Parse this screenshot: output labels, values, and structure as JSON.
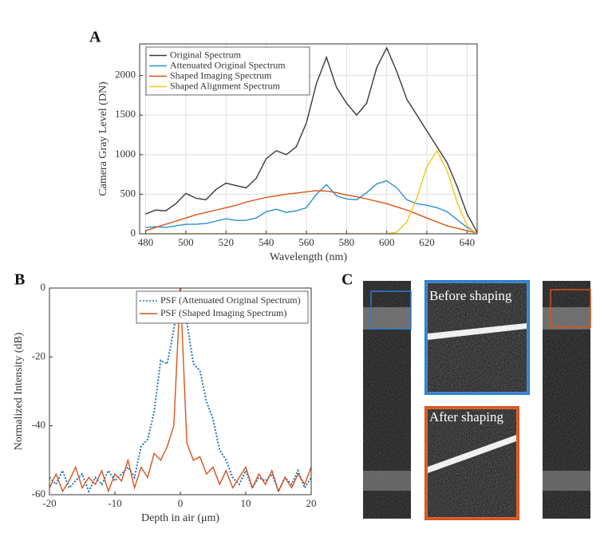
{
  "chart_data": [
    {
      "type": "line",
      "panel_label": "A",
      "xlabel": "Wavelength (nm)",
      "ylabel": "Camera Gray Level (DN)",
      "xlim": [
        477,
        645
      ],
      "ylim": [
        0,
        2400
      ],
      "xticks": [
        480,
        500,
        520,
        540,
        560,
        580,
        600,
        620,
        640
      ],
      "yticks": [
        0,
        500,
        1000,
        1500,
        2000
      ],
      "grid": true,
      "legend": "upper left",
      "x": [
        480,
        485,
        490,
        495,
        500,
        505,
        510,
        515,
        520,
        525,
        530,
        535,
        540,
        545,
        550,
        555,
        560,
        565,
        570,
        575,
        580,
        585,
        590,
        595,
        600,
        605,
        610,
        615,
        620,
        625,
        630,
        635,
        640,
        645
      ],
      "series": [
        {
          "name": "Original Spectrum",
          "color": "#3a3a3a",
          "linestyle": "solid",
          "values": [
            250,
            300,
            290,
            380,
            510,
            450,
            430,
            560,
            640,
            610,
            580,
            700,
            950,
            1050,
            1000,
            1100,
            1400,
            1900,
            2230,
            1850,
            1650,
            1500,
            1650,
            2100,
            2350,
            2050,
            1700,
            1500,
            1300,
            1100,
            900,
            600,
            250,
            20
          ]
        },
        {
          "name": "Attenuated Original Spectrum",
          "color": "#2a8fd4",
          "linestyle": "solid",
          "values": [
            80,
            90,
            80,
            100,
            120,
            120,
            130,
            160,
            190,
            170,
            170,
            200,
            280,
            310,
            270,
            290,
            330,
            500,
            620,
            480,
            440,
            430,
            520,
            630,
            670,
            580,
            430,
            380,
            360,
            330,
            280,
            180,
            80,
            10
          ]
        },
        {
          "name": "Shaped Imaging Spectrum",
          "color": "#d95319",
          "linestyle": "solid",
          "values": [
            40,
            80,
            120,
            160,
            200,
            240,
            270,
            300,
            330,
            360,
            400,
            430,
            460,
            480,
            500,
            515,
            530,
            545,
            540,
            520,
            490,
            470,
            440,
            410,
            380,
            340,
            300,
            250,
            200,
            150,
            100,
            70,
            40,
            10
          ]
        },
        {
          "name": "Shaped Alignment Spectrum",
          "color": "#f2c80f",
          "linestyle": "solid",
          "values": [
            0,
            0,
            0,
            0,
            0,
            0,
            0,
            0,
            0,
            0,
            0,
            0,
            0,
            0,
            0,
            0,
            0,
            0,
            0,
            0,
            0,
            0,
            0,
            0,
            0,
            20,
            150,
            450,
            850,
            1050,
            800,
            400,
            100,
            0
          ]
        }
      ]
    },
    {
      "type": "line",
      "panel_label": "B",
      "xlabel": "Depth in air (μm)",
      "ylabel": "Normalized Intensity (dB)",
      "xlim": [
        -20,
        20
      ],
      "ylim": [
        -60,
        0
      ],
      "xticks": [
        -20,
        -10,
        0,
        10,
        20
      ],
      "yticks": [
        -60,
        -40,
        -20,
        0
      ],
      "grid": false,
      "legend": "upper right",
      "x": [
        -20,
        -19,
        -18,
        -17,
        -16,
        -15,
        -14,
        -13,
        -12,
        -11,
        -10,
        -9,
        -8,
        -7,
        -6,
        -5,
        -4,
        -3,
        -2,
        -1,
        0,
        1,
        2,
        3,
        4,
        5,
        6,
        7,
        8,
        9,
        10,
        11,
        12,
        13,
        14,
        15,
        16,
        17,
        18,
        19,
        20
      ],
      "series": [
        {
          "name": "PSF (Attenuated Original Spectrum)",
          "color": "#1f77c4",
          "linestyle": "dotted",
          "values": [
            -55,
            -57,
            -53,
            -58,
            -56,
            -54,
            -59,
            -55,
            -57,
            -53,
            -56,
            -54,
            -52,
            -55,
            -46,
            -44,
            -36,
            -21,
            -22,
            -12,
            0,
            -10,
            -22,
            -24,
            -33,
            -38,
            -47,
            -50,
            -55,
            -57,
            -53,
            -58,
            -55,
            -56,
            -54,
            -59,
            -55,
            -57,
            -53,
            -58,
            -55
          ]
        },
        {
          "name": "PSF (Shaped Imaging Spectrum)",
          "color": "#d95319",
          "linestyle": "solid",
          "values": [
            -58,
            -54,
            -59,
            -56,
            -52,
            -58,
            -55,
            -57,
            -53,
            -59,
            -54,
            -56,
            -50,
            -58,
            -52,
            -55,
            -48,
            -50,
            -46,
            -40,
            0,
            -45,
            -50,
            -49,
            -54,
            -52,
            -57,
            -53,
            -58,
            -55,
            -52,
            -58,
            -54,
            -57,
            -53,
            -59,
            -55,
            -58,
            -54,
            -57,
            -52
          ]
        }
      ]
    }
  ],
  "panel_c": {
    "label": "C",
    "before": "Before shaping",
    "after": "After shaping"
  }
}
